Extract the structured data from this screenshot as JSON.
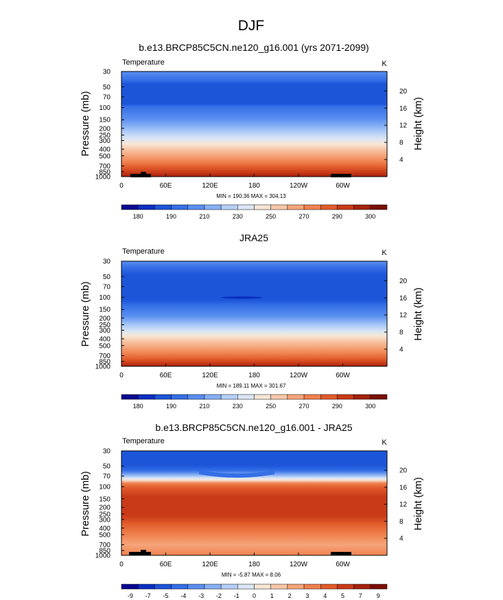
{
  "figure_title": "DJF",
  "chart_data": [
    {
      "type": "heatmap",
      "title": "b.e13.BRCP85C5CN.ne120_g16.001 (yrs 2071-2099)",
      "left_label": "Temperature",
      "right_label": "K",
      "ylabel": "Pressure (mb)",
      "ylabel_right": "Height (km)",
      "pressure_ticks": [
        "30",
        "50",
        "70",
        "100",
        "150",
        "200",
        "250",
        "300",
        "400",
        "500",
        "700",
        "850",
        "1000"
      ],
      "height_ticks": [
        "20",
        "16",
        "12",
        "8",
        "4"
      ],
      "lon_ticks": [
        "0",
        "60E",
        "120E",
        "180",
        "120W",
        "60W"
      ],
      "stats": "MIN = 190.36  MAX = 304.13",
      "colorbar_labels": [
        "180",
        "190",
        "210",
        "230",
        "250",
        "270",
        "290",
        "300"
      ],
      "colorbar_colors": [
        "#08088f",
        "#0b2fc0",
        "#1c55d8",
        "#356fe6",
        "#5a8ef0",
        "#86b0f5",
        "#b4d0f8",
        "#dbe6f5",
        "#f7e6d6",
        "#f8c7a8",
        "#f5a47a",
        "#f0814f",
        "#e25c2c",
        "#c93a18",
        "#a4220c",
        "#7a0f05"
      ]
    },
    {
      "type": "heatmap",
      "title": "JRA25",
      "left_label": "Temperature",
      "right_label": "K",
      "ylabel": "Pressure (mb)",
      "ylabel_right": "Height (km)",
      "pressure_ticks": [
        "30",
        "50",
        "70",
        "100",
        "150",
        "200",
        "250",
        "300",
        "400",
        "500",
        "700",
        "850",
        "1000"
      ],
      "height_ticks": [
        "20",
        "16",
        "12",
        "8",
        "4"
      ],
      "lon_ticks": [
        "0",
        "60E",
        "120E",
        "180",
        "120W",
        "60W"
      ],
      "stats": "MIN = 189.11  MAX = 301.67",
      "colorbar_labels": [
        "180",
        "190",
        "210",
        "230",
        "250",
        "270",
        "290",
        "300"
      ],
      "colorbar_colors": [
        "#08088f",
        "#0b2fc0",
        "#1c55d8",
        "#356fe6",
        "#5a8ef0",
        "#86b0f5",
        "#b4d0f8",
        "#dbe6f5",
        "#f7e6d6",
        "#f8c7a8",
        "#f5a47a",
        "#f0814f",
        "#e25c2c",
        "#c93a18",
        "#a4220c",
        "#7a0f05"
      ]
    },
    {
      "type": "heatmap",
      "title": "b.e13.BRCP85C5CN.ne120_g16.001 - JRA25",
      "left_label": "Temperature",
      "right_label": "K",
      "ylabel": "Pressure (mb)",
      "ylabel_right": "Height (km)",
      "pressure_ticks": [
        "30",
        "50",
        "70",
        "100",
        "150",
        "200",
        "250",
        "300",
        "400",
        "500",
        "700",
        "850",
        "1000"
      ],
      "height_ticks": [
        "20",
        "16",
        "12",
        "8",
        "4"
      ],
      "lon_ticks": [
        "0",
        "60E",
        "120E",
        "180",
        "120W",
        "60W"
      ],
      "stats": "MIN =  -5.87  MAX =  8.06",
      "colorbar_labels": [
        "-9",
        "-7",
        "-5",
        "-4",
        "-3",
        "-2",
        "-1",
        "0",
        "1",
        "2",
        "3",
        "4",
        "5",
        "7",
        "9"
      ],
      "colorbar_colors": [
        "#08088f",
        "#0b2fc0",
        "#1c55d8",
        "#356fe6",
        "#5a8ef0",
        "#86b0f5",
        "#b4d0f8",
        "#dbe6f5",
        "#f7e6d6",
        "#f8c7a8",
        "#f5a47a",
        "#f0814f",
        "#e25c2c",
        "#c93a18",
        "#a4220c",
        "#7a0f05"
      ]
    }
  ]
}
